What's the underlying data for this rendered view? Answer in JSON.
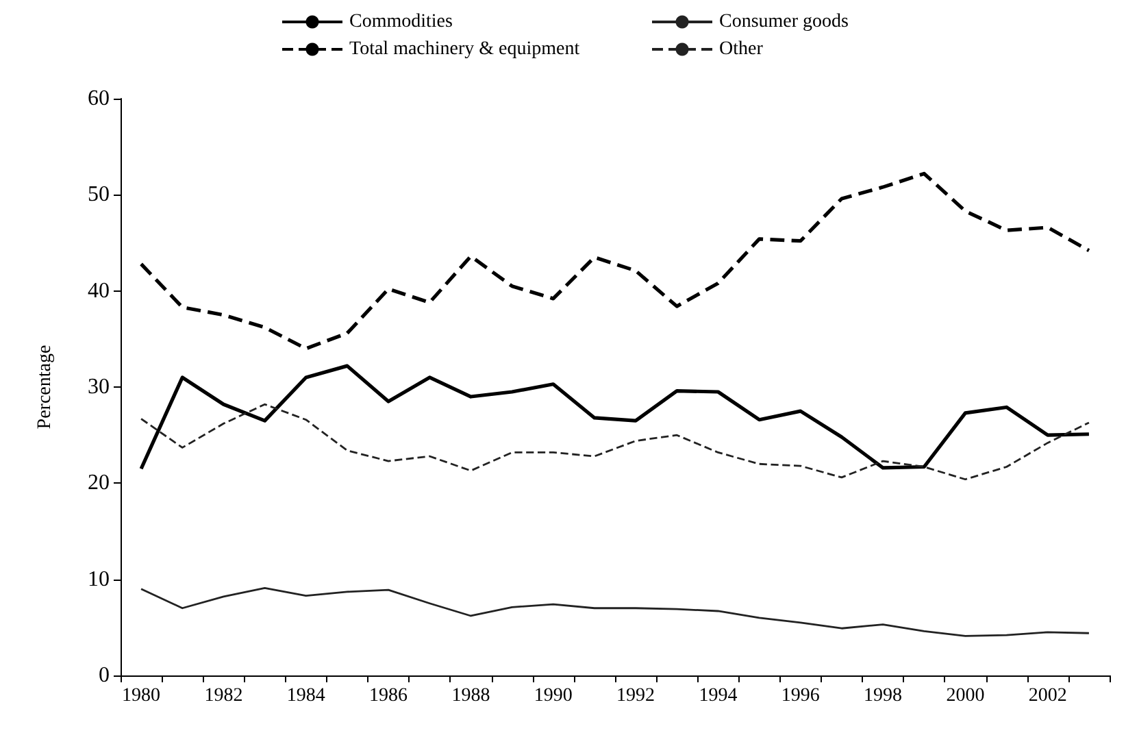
{
  "chart_data": {
    "type": "line",
    "ylabel": "Percentage",
    "categories": [
      "1980",
      null,
      "1982",
      null,
      "1984",
      null,
      "1986",
      null,
      "1988",
      null,
      "1990",
      null,
      "1992",
      null,
      "1994",
      null,
      "1996",
      null,
      "1998",
      null,
      "2000",
      null,
      "2002",
      null
    ],
    "series": [
      {
        "name": "Commodities",
        "color": "#000000",
        "line_style": "solid",
        "values": [
          21.5,
          31,
          28.2,
          26.5,
          31,
          32.2,
          28.5,
          31,
          29,
          29.5,
          30.3,
          26.8,
          26.5,
          29.6,
          29.5,
          26.6,
          27.5,
          24.8,
          21.6,
          21.7,
          27.3,
          27.9,
          25,
          25.1
        ]
      },
      {
        "name": "Consumer goods",
        "color": "#222222",
        "line_style": "solid",
        "values": [
          9,
          7,
          8.2,
          9.1,
          8.3,
          8.7,
          8.9,
          7.5,
          6.2,
          7.1,
          7.4,
          7,
          7,
          6.9,
          6.7,
          6,
          5.5,
          4.9,
          5.3,
          4.6,
          4.1,
          4.2,
          4.5,
          4.4
        ]
      },
      {
        "name": "Total machinery & equipment",
        "color": "#000000",
        "line_style": "dashed",
        "values": [
          42.8,
          38.3,
          37.5,
          36.2,
          34,
          35.6,
          40.2,
          38.8,
          43.6,
          40.5,
          39.2,
          43.5,
          42.1,
          38.4,
          40.8,
          45.4,
          45.2,
          49.6,
          50.8,
          52.2,
          48.3,
          46.3,
          46.6,
          44.2
        ]
      },
      {
        "name": "Other",
        "color": "#222222",
        "line_style": "dashed",
        "values": [
          26.7,
          23.7,
          26.2,
          28.2,
          26.6,
          23.4,
          22.3,
          22.8,
          21.3,
          23.2,
          23.2,
          22.8,
          24.4,
          25,
          23.2,
          22,
          21.8,
          20.6,
          22.3,
          21.7,
          20.4,
          21.7,
          24.2,
          26.3
        ]
      }
    ],
    "ylim": [
      0,
      60
    ],
    "yticks": [
      0,
      10,
      20,
      30,
      40,
      50,
      60
    ],
    "grid": false,
    "legend": "top",
    "marker": "none"
  }
}
